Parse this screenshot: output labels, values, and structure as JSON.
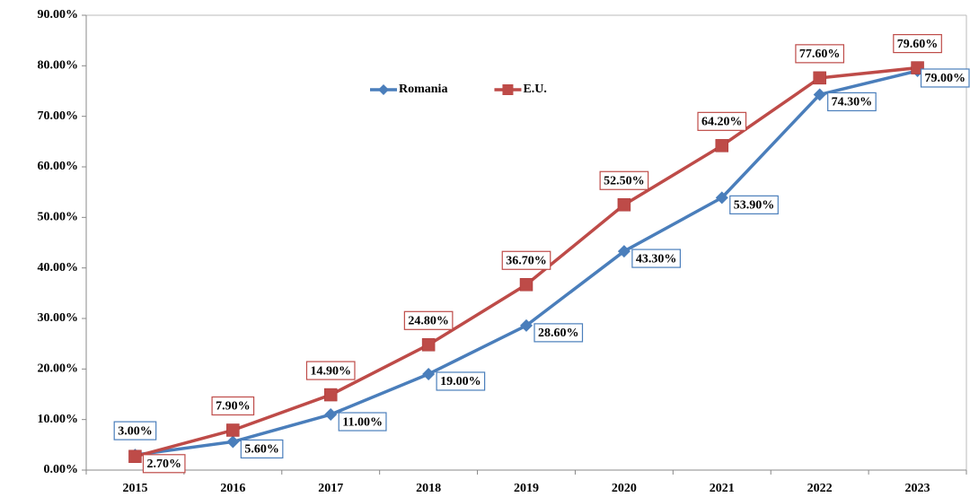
{
  "chart_data": {
    "type": "line",
    "categories": [
      "2015",
      "2016",
      "2017",
      "2018",
      "2019",
      "2020",
      "2021",
      "2022",
      "2023"
    ],
    "series": [
      {
        "name": "Romania",
        "color": "#4a7ebb",
        "marker": "diamond",
        "values": [
          3.0,
          5.6,
          11.0,
          19.0,
          28.6,
          43.3,
          53.9,
          74.3,
          79.0
        ],
        "value_labels": [
          "3.00%",
          "5.60%",
          "11.00%",
          "19.00%",
          "28.60%",
          "43.30%",
          "53.90%",
          "74.30%",
          "79.00%"
        ]
      },
      {
        "name": "E.U.",
        "color": "#be4b48",
        "marker": "square",
        "values": [
          2.7,
          7.9,
          14.9,
          24.8,
          36.7,
          52.5,
          64.2,
          77.6,
          79.6
        ],
        "value_labels": [
          "2.70%",
          "7.90%",
          "14.90%",
          "24.80%",
          "36.70%",
          "52.50%",
          "64.20%",
          "77.60%",
          "79.60%"
        ]
      }
    ],
    "ylim": [
      0,
      90
    ],
    "yticks": [
      {
        "value": 0,
        "label": "0.00%"
      },
      {
        "value": 10,
        "label": "10.00%"
      },
      {
        "value": 20,
        "label": "20.00%"
      },
      {
        "value": 30,
        "label": "30.00%"
      },
      {
        "value": 40,
        "label": "40.00%"
      },
      {
        "value": 50,
        "label": "50.00%"
      },
      {
        "value": 60,
        "label": "60.00%"
      },
      {
        "value": 70,
        "label": "70.00%"
      },
      {
        "value": 80,
        "label": "80.00%"
      },
      {
        "value": 90,
        "label": "90.00%"
      }
    ],
    "legend": "top"
  }
}
